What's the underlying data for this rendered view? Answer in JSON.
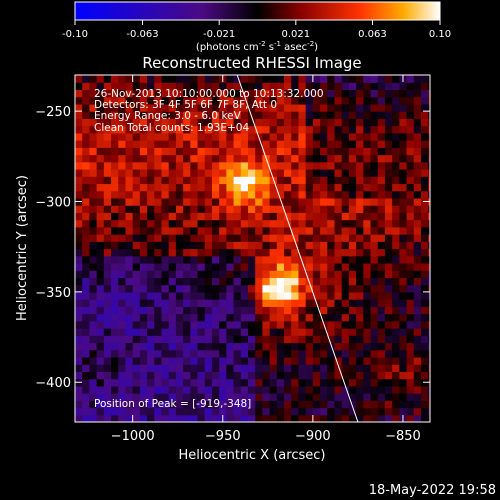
{
  "colorbar": {
    "ticks": [
      "-0.10",
      "-0.063",
      "-0.021",
      "0.021",
      "0.063",
      "0.10"
    ],
    "range": [
      -0.1,
      0.1
    ],
    "label_parts": [
      "(photons cm",
      "-2",
      " s",
      "-1",
      " asec",
      "-2",
      ")"
    ],
    "colors": [
      "#0000ff",
      "#4b0a82",
      "#000000",
      "#8b0000",
      "#ff3300",
      "#ffaa00",
      "#ffffff"
    ]
  },
  "chart_data": {
    "type": "heatmap",
    "title": "Reconstructed RHESSI Image",
    "xlabel": "Heliocentric X (arcsec)",
    "ylabel": "Heliocentric Y (arcsec)",
    "xlim": [
      -1032,
      -835
    ],
    "ylim": [
      -422,
      -230
    ],
    "x_ticks": [
      -1000,
      -950,
      -900,
      -850
    ],
    "y_ticks": [
      -250,
      -300,
      -350,
      -400
    ],
    "x_tick_labels": [
      "−1000",
      "−950",
      "−900",
      "−850"
    ],
    "y_tick_labels": [
      "−250",
      "−300",
      "−350",
      "−400"
    ],
    "sources": [
      {
        "x": -919,
        "y": -348,
        "value": 0.1
      },
      {
        "x": -938,
        "y": -290,
        "value": 0.075
      }
    ],
    "limb_line": [
      [
        -942,
        -230
      ],
      [
        -875,
        -422
      ]
    ],
    "annotations": [
      "26-Nov-2013 10:10:00.000 to 10:13:32.000",
      "Detectors: 3F 4F 5F 6F 7F 8F, Att 0",
      "Energy Range: 3.0 - 6.0 keV",
      "Clean     Total counts: 1.93E+04"
    ],
    "peak_label": "Position of Peak = [-919,-348]"
  },
  "footer": {
    "timestamp": "18-May-2022 19:58"
  }
}
